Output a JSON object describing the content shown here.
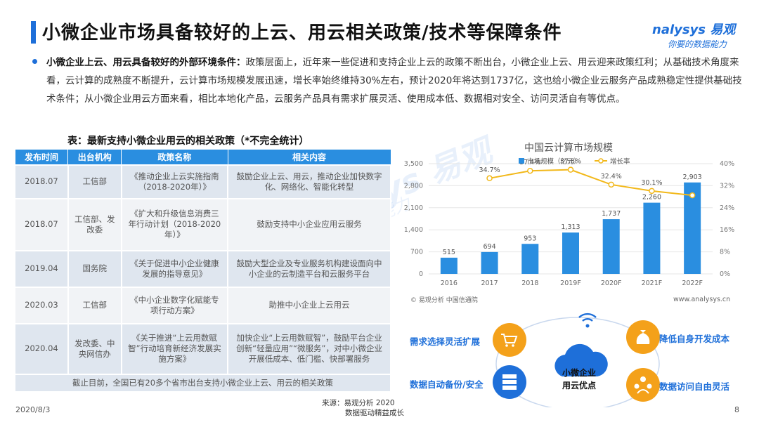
{
  "header": {
    "title": "小微企业市场具备较好的上云、用云相关政策/技术等保障条件",
    "logo_brand": "nalysys 易观",
    "logo_tagline": "你要的数据能力"
  },
  "intro": {
    "lead": "小微企业上云、用云具备较好的外部环境条件：",
    "body": "政策层面上，近年来一些促进和支持企业上云的政策不断出台，小微企业上云、用云迎来政策红利；从基础技术角度来看，云计算的成熟度不断提升，云计算市场规模发展迅速，增长率始终维持30%左右，预计2020年将达到1737亿，这也给小微企业云服务产品成熟稳定性提供基础技术条件；从小微企业用云方面来看，相比本地化产品，云服务产品具有需求扩展灵活、使用成本低、数据相对安全、访问灵活自有等优点。"
  },
  "policy_table": {
    "caption": "表：最新支持小微企业用云的相关政策（*不完全统计）",
    "headers": [
      "发布时间",
      "出台机构",
      "政策名称",
      "相关内容"
    ],
    "rows": [
      [
        "2018.07",
        "工信部",
        "《推动企业上云实施指南（2018-2020年）》",
        "鼓励企业上云、用云，推动企业加快数字化、网络化、智能化转型"
      ],
      [
        "2018.07",
        "工信部、发改委",
        "《扩大和升级信息消费三年行动计划（2018-2020年）》",
        "鼓励支持中小企业应用云服务"
      ],
      [
        "2019.04",
        "国务院",
        "《关于促进中小企业健康发展的指导意见》",
        "鼓励大型企业及专业服务机构建设面向中小企业的云制造平台和云服务平台"
      ],
      [
        "2020.03",
        "工信部",
        "《中小企业数字化赋能专项行动方案》",
        "助推中小企业上云用云"
      ],
      [
        "2020.04",
        "发改委、中央网信办",
        "《关于推进“上云用数赋智”行动培育新经济发展实施方案》",
        "加快企业“上云用数赋智”，鼓励平台企业创新“轻量应用”“微服务”，对中小微企业开展低成本、低门槛、快部署服务"
      ]
    ],
    "footer": "截止目前，全国已有20多个省市出台支持小微企业上云、用云的相关政策"
  },
  "chart_data": {
    "type": "bar",
    "title": "中国云计算市场规模",
    "categories": [
      "2016",
      "2017",
      "2018",
      "2019F",
      "2020F",
      "2021F",
      "2022F"
    ],
    "series": [
      {
        "name": "市场规模（亿元）",
        "type": "bar",
        "values": [
          515,
          694,
          953,
          1313,
          1737,
          2260,
          2903
        ],
        "color": "#2a8ee0"
      },
      {
        "name": "增长率",
        "type": "line",
        "values": [
          null,
          34.7,
          37.4,
          37.8,
          32.4,
          30.1,
          28.5
        ],
        "labels": [
          null,
          "34.7%",
          "37.4%",
          "37.8%",
          "32.4%",
          "30.1%",
          null
        ],
        "color": "#f2b81a"
      }
    ],
    "y_left": {
      "ticks": [
        "0",
        "700",
        "1,400",
        "2,100",
        "2,800",
        "3,500"
      ],
      "lim": [
        0,
        3500
      ]
    },
    "y_right": {
      "ticks": [
        "0%",
        "8%",
        "16%",
        "24%",
        "32%",
        "40%"
      ],
      "lim": [
        0,
        40
      ]
    },
    "legend": "top",
    "source": "© 易观分析 中国信通院",
    "website": "www.analysys.cn"
  },
  "advantages": {
    "center": [
      "小微企业",
      "用云优点"
    ],
    "items": [
      "需求选择灵活扩展",
      "降低自身开发成本",
      "数据自动备份/安全",
      "数据访问自由灵活"
    ],
    "colors": {
      "orange": "#f4a11a",
      "blue": "#1e6fd9"
    }
  },
  "footer": {
    "date": "2020/8/3",
    "source": "来源：易观分析 2020",
    "slogan": "数据驱动精益成长",
    "page": "8"
  },
  "watermark": {
    "line1": "Analysys 易观",
    "line2": "你要的数据能力"
  }
}
